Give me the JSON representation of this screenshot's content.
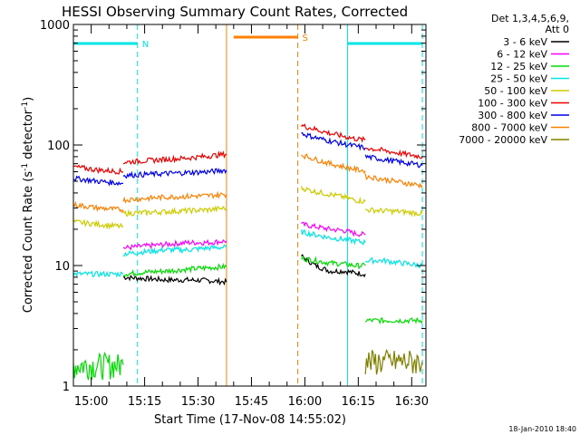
{
  "chart_data": {
    "type": "line",
    "title": "HESSI Observing Summary Count Rates, Corrected",
    "xlabel": "Start Time (17-Nov-08 14:55:02)",
    "ylabel": "Corrected Count Rate (s⁻¹ detector⁻¹)",
    "ylabel_parts": {
      "main": "Corrected Count Rate (s",
      "sup1": "-1",
      "mid": " detector",
      "sup2": "-1",
      "end": ")"
    },
    "yscale": "log",
    "ylim": [
      1,
      1000
    ],
    "xlim": [
      "14:55",
      "16:34"
    ],
    "x_ticks": [
      "15:00",
      "15:15",
      "15:30",
      "15:45",
      "16:00",
      "16:15",
      "16:30"
    ],
    "y_ticks": [
      "1",
      "10",
      "100",
      "1000"
    ],
    "legend_header": [
      "Det 1,3,4,5,6,9,",
      "Att 0"
    ],
    "legend_position": "right",
    "timestamp": "18-Jan-2010 18:40",
    "flags": [
      {
        "label": "N",
        "color": "#00e5e5",
        "start": "14:55",
        "end": "15:13"
      },
      {
        "label": "S",
        "color": "#ff8000",
        "start": "15:40",
        "end": "15:58"
      },
      {
        "label": "",
        "color": "#00e5e5",
        "start": "16:12",
        "end": "16:33"
      }
    ],
    "day_periods": [
      {
        "color": "#00e5e5",
        "start": "14:55",
        "end": "15:13"
      },
      {
        "color": "#ff8000",
        "start": "15:38",
        "end": "15:58"
      },
      {
        "color": "#00e5e5",
        "start": "16:12",
        "end": "16:33"
      }
    ],
    "series": [
      {
        "name": "3 - 6 keV",
        "color": "#000000",
        "segments": [
          {
            "x": [
              "15:09",
              "15:15",
              "15:21",
              "15:27",
              "15:33",
              "15:38"
            ],
            "y": [
              8,
              7.8,
              7.6,
              7.6,
              7.5,
              7.3
            ]
          },
          {
            "x": [
              "15:59",
              "16:03",
              "16:07",
              "16:11",
              "16:14",
              "16:17"
            ],
            "y": [
              12,
              10,
              9,
              9,
              8.7,
              8.5
            ]
          }
        ]
      },
      {
        "name": "6 - 12 keV",
        "color": "#ff00ff",
        "segments": [
          {
            "x": [
              "15:09",
              "15:15",
              "15:21",
              "15:27",
              "15:33",
              "15:38"
            ],
            "y": [
              14,
              14.5,
              15,
              15.5,
              15.5,
              16
            ]
          },
          {
            "x": [
              "15:59",
              "16:03",
              "16:07",
              "16:11",
              "16:14",
              "16:17"
            ],
            "y": [
              22,
              21,
              20,
              19.5,
              18.5,
              18
            ]
          }
        ]
      },
      {
        "name": "12 - 25 keV",
        "color": "#00dd00",
        "segments": [
          {
            "x": [
              "14:55",
              "15:09"
            ],
            "y": [
              1.5,
              1.5
            ]
          },
          {
            "x": [
              "15:09",
              "15:15",
              "15:21",
              "15:27",
              "15:33",
              "15:38"
            ],
            "y": [
              8.5,
              8.8,
              9,
              9.3,
              9.6,
              9.8
            ]
          },
          {
            "x": [
              "15:59",
              "16:03",
              "16:07",
              "16:11",
              "16:14",
              "16:17"
            ],
            "y": [
              11.5,
              11,
              10.5,
              10.3,
              10,
              10
            ]
          },
          {
            "x": [
              "16:17",
              "16:22",
              "16:27",
              "16:33"
            ],
            "y": [
              3.5,
              3.5,
              3.5,
              3.5
            ]
          }
        ]
      },
      {
        "name": "25 - 50 keV",
        "color": "#00e5e5",
        "segments": [
          {
            "x": [
              "14:55",
              "15:02",
              "15:09"
            ],
            "y": [
              8.5,
              8.5,
              8.5
            ]
          },
          {
            "x": [
              "15:09",
              "15:15",
              "15:21",
              "15:27",
              "15:33",
              "15:38"
            ],
            "y": [
              12.5,
              13,
              13.5,
              13.5,
              14,
              14.2
            ]
          },
          {
            "x": [
              "15:59",
              "16:03",
              "16:07",
              "16:11",
              "16:14",
              "16:17"
            ],
            "y": [
              19,
              18,
              17,
              16.5,
              16,
              15.5
            ]
          },
          {
            "x": [
              "16:17",
              "16:22",
              "16:27",
              "16:33"
            ],
            "y": [
              11,
              11,
              10.5,
              10
            ]
          }
        ]
      },
      {
        "name": "50 - 100 keV",
        "color": "#cccc00",
        "segments": [
          {
            "x": [
              "14:55",
              "15:02",
              "15:09"
            ],
            "y": [
              23,
              22,
              21
            ]
          },
          {
            "x": [
              "15:09",
              "15:15",
              "15:21",
              "15:27",
              "15:33",
              "15:38"
            ],
            "y": [
              27,
              27.5,
              28,
              28.5,
              29,
              30
            ]
          },
          {
            "x": [
              "15:59",
              "16:03",
              "16:07",
              "16:11",
              "16:14",
              "16:17"
            ],
            "y": [
              44,
              41,
              39,
              37,
              35,
              34
            ]
          },
          {
            "x": [
              "16:17",
              "16:22",
              "16:27",
              "16:33"
            ],
            "y": [
              29,
              28.5,
              28,
              27
            ]
          }
        ]
      },
      {
        "name": "100 - 300 keV",
        "color": "#ee0000",
        "segments": [
          {
            "x": [
              "14:55",
              "15:02",
              "15:09"
            ],
            "y": [
              66,
              62,
              60
            ]
          },
          {
            "x": [
              "15:09",
              "15:15",
              "15:21",
              "15:27",
              "15:33",
              "15:38"
            ],
            "y": [
              72,
              74,
              76,
              78,
              81,
              84
            ]
          },
          {
            "x": [
              "15:59",
              "16:03",
              "16:07",
              "16:11",
              "16:14",
              "16:17"
            ],
            "y": [
              145,
              135,
              125,
              118,
              113,
              110
            ]
          },
          {
            "x": [
              "16:17",
              "16:22",
              "16:27",
              "16:33"
            ],
            "y": [
              95,
              90,
              85,
              80
            ]
          }
        ]
      },
      {
        "name": "300 - 800 keV",
        "color": "#0000ee",
        "segments": [
          {
            "x": [
              "14:55",
              "15:02",
              "15:09"
            ],
            "y": [
              53,
              50,
              48
            ]
          },
          {
            "x": [
              "15:09",
              "15:15",
              "15:21",
              "15:27",
              "15:33",
              "15:38"
            ],
            "y": [
              56,
              57,
              58,
              59,
              60,
              62
            ]
          },
          {
            "x": [
              "15:59",
              "16:03",
              "16:07",
              "16:11",
              "16:14",
              "16:17"
            ],
            "y": [
              125,
              115,
              108,
              102,
              98,
              95
            ]
          },
          {
            "x": [
              "16:17",
              "16:22",
              "16:27",
              "16:33"
            ],
            "y": [
              80,
              76,
              72,
              68
            ]
          }
        ]
      },
      {
        "name": "800 - 7000 keV",
        "color": "#ff8000",
        "segments": [
          {
            "x": [
              "14:55",
              "15:02",
              "15:09"
            ],
            "y": [
              32,
              30,
              29
            ]
          },
          {
            "x": [
              "15:09",
              "15:15",
              "15:21",
              "15:27",
              "15:33",
              "15:38"
            ],
            "y": [
              35,
              36,
              37,
              37.5,
              38,
              39
            ]
          },
          {
            "x": [
              "15:59",
              "16:03",
              "16:07",
              "16:11",
              "16:14",
              "16:17"
            ],
            "y": [
              83,
              76,
              70,
              66,
              63,
              61
            ]
          },
          {
            "x": [
              "16:17",
              "16:22",
              "16:27",
              "16:33"
            ],
            "y": [
              55,
              52,
              49,
              46
            ]
          }
        ]
      },
      {
        "name": "7000 - 20000 keV",
        "color": "#808000",
        "segments": [
          {
            "x": [
              "16:17",
              "16:22",
              "16:27",
              "16:33"
            ],
            "y": [
              1.6,
              1.6,
              1.6,
              1.6
            ]
          }
        ]
      }
    ]
  }
}
